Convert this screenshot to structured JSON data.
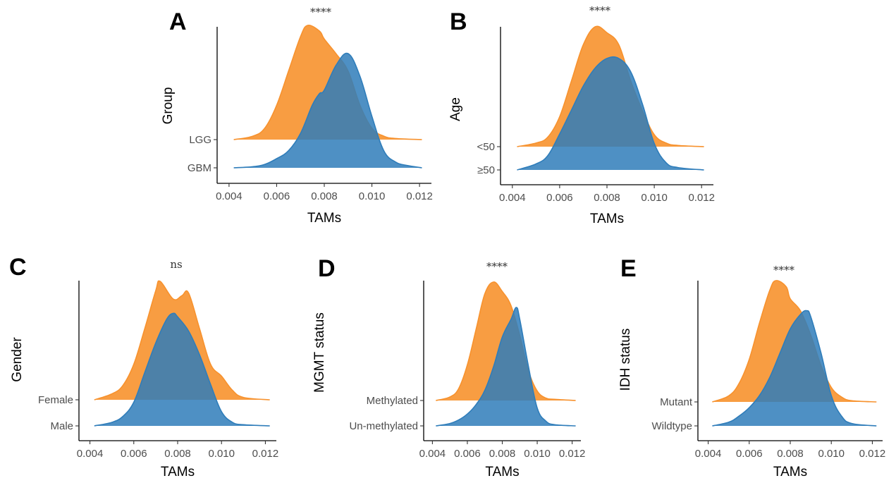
{
  "colors": {
    "upper": "#F7922E",
    "lower": "#2F7DBA"
  },
  "chart_data": [
    {
      "type": "density-ridge",
      "panel_label": "A",
      "significance": "****",
      "xlabel": "TAMs",
      "ylabel": "Group",
      "xlim": [
        0.0035,
        0.0125
      ],
      "xticks": [
        "0.004",
        "0.006",
        "0.008",
        "0.010",
        "0.012"
      ],
      "series": [
        {
          "name": "LGG",
          "x": [
            0.0042,
            0.005,
            0.0055,
            0.006,
            0.0065,
            0.007,
            0.0073,
            0.0078,
            0.008,
            0.0085,
            0.009,
            0.0095,
            0.01,
            0.0105,
            0.011,
            0.0121
          ],
          "y": [
            0,
            0.03,
            0.1,
            0.3,
            0.6,
            0.9,
            1.0,
            0.95,
            0.88,
            0.75,
            0.6,
            0.3,
            0.1,
            0.03,
            0.01,
            0
          ]
        },
        {
          "name": "GBM",
          "x": [
            0.0042,
            0.005,
            0.0055,
            0.006,
            0.0065,
            0.007,
            0.0075,
            0.0078,
            0.008,
            0.0085,
            0.009,
            0.0095,
            0.01,
            0.0105,
            0.011,
            0.0115,
            0.0121
          ],
          "y": [
            0,
            0.01,
            0.03,
            0.08,
            0.15,
            0.3,
            0.55,
            0.65,
            0.68,
            0.9,
            1.0,
            0.8,
            0.45,
            0.15,
            0.05,
            0.02,
            0
          ]
        }
      ]
    },
    {
      "type": "density-ridge",
      "panel_label": "B",
      "significance": "****",
      "xlabel": "TAMs",
      "ylabel": "Age",
      "xlim": [
        0.0035,
        0.0125
      ],
      "xticks": [
        "0.004",
        "0.006",
        "0.008",
        "0.010",
        "0.012"
      ],
      "series": [
        {
          "name": "<50",
          "x": [
            0.0042,
            0.005,
            0.0055,
            0.006,
            0.0065,
            0.007,
            0.0075,
            0.008,
            0.0085,
            0.009,
            0.0095,
            0.01,
            0.0105,
            0.011,
            0.0121
          ],
          "y": [
            0,
            0.03,
            0.08,
            0.25,
            0.55,
            0.85,
            1.0,
            0.95,
            0.85,
            0.55,
            0.3,
            0.1,
            0.03,
            0.01,
            0
          ]
        },
        {
          "name": "≥50",
          "x": [
            0.0042,
            0.005,
            0.0055,
            0.006,
            0.0065,
            0.007,
            0.0075,
            0.008,
            0.0085,
            0.009,
            0.0095,
            0.01,
            0.0105,
            0.011,
            0.0121
          ],
          "y": [
            0,
            0.05,
            0.12,
            0.3,
            0.5,
            0.7,
            0.85,
            0.93,
            0.93,
            0.82,
            0.55,
            0.22,
            0.06,
            0.02,
            0
          ]
        }
      ]
    },
    {
      "type": "density-ridge",
      "panel_label": "C",
      "significance": "ns",
      "xlabel": "TAMs",
      "ylabel": "Gender",
      "xlim": [
        0.0035,
        0.0125
      ],
      "xticks": [
        "0.004",
        "0.006",
        "0.008",
        "0.010",
        "0.012"
      ],
      "series": [
        {
          "name": "Female",
          "x": [
            0.0042,
            0.005,
            0.0055,
            0.006,
            0.0065,
            0.007,
            0.0072,
            0.0078,
            0.0082,
            0.0085,
            0.009,
            0.0095,
            0.01,
            0.0105,
            0.011,
            0.0122
          ],
          "y": [
            0,
            0.05,
            0.12,
            0.3,
            0.6,
            0.92,
            1.0,
            0.85,
            0.88,
            0.9,
            0.6,
            0.3,
            0.2,
            0.08,
            0.02,
            0
          ]
        },
        {
          "name": "Male",
          "x": [
            0.0042,
            0.005,
            0.0055,
            0.006,
            0.0065,
            0.007,
            0.0075,
            0.0078,
            0.008,
            0.0085,
            0.009,
            0.0095,
            0.01,
            0.0105,
            0.011,
            0.0122
          ],
          "y": [
            0,
            0.03,
            0.08,
            0.2,
            0.45,
            0.7,
            0.9,
            0.95,
            0.92,
            0.8,
            0.6,
            0.35,
            0.12,
            0.03,
            0.01,
            0
          ]
        }
      ]
    },
    {
      "type": "density-ridge",
      "panel_label": "D",
      "significance": "****",
      "xlabel": "TAMs",
      "ylabel": "MGMT status",
      "xlim": [
        0.0035,
        0.0125
      ],
      "xticks": [
        "0.004",
        "0.006",
        "0.008",
        "0.010",
        "0.012"
      ],
      "series": [
        {
          "name": "Methylated",
          "x": [
            0.0042,
            0.005,
            0.0055,
            0.006,
            0.0065,
            0.007,
            0.0075,
            0.008,
            0.0085,
            0.009,
            0.0095,
            0.01,
            0.0105,
            0.011,
            0.0122
          ],
          "y": [
            0,
            0.03,
            0.1,
            0.3,
            0.6,
            0.9,
            1.0,
            0.92,
            0.8,
            0.55,
            0.25,
            0.08,
            0.02,
            0.01,
            0
          ]
        },
        {
          "name": "Un-methylated",
          "x": [
            0.0042,
            0.005,
            0.0055,
            0.006,
            0.0065,
            0.007,
            0.0075,
            0.008,
            0.0085,
            0.0088,
            0.009,
            0.0095,
            0.01,
            0.0105,
            0.011,
            0.0122
          ],
          "y": [
            0,
            0.02,
            0.05,
            0.1,
            0.18,
            0.3,
            0.5,
            0.75,
            0.9,
            1.0,
            0.9,
            0.5,
            0.15,
            0.04,
            0.01,
            0
          ]
        }
      ]
    },
    {
      "type": "density-ridge",
      "panel_label": "E",
      "significance": "****",
      "xlabel": "TAMs",
      "ylabel": "IDH status",
      "xlim": [
        0.0035,
        0.0125
      ],
      "xticks": [
        "0.004",
        "0.006",
        "0.008",
        "0.010",
        "0.012"
      ],
      "series": [
        {
          "name": "Mutant",
          "x": [
            0.0042,
            0.005,
            0.0055,
            0.006,
            0.0065,
            0.007,
            0.0073,
            0.0078,
            0.008,
            0.0085,
            0.009,
            0.0095,
            0.01,
            0.0105,
            0.011,
            0.0122
          ],
          "y": [
            0,
            0.05,
            0.15,
            0.35,
            0.65,
            0.92,
            1.0,
            0.95,
            0.85,
            0.75,
            0.55,
            0.3,
            0.12,
            0.04,
            0.01,
            0
          ]
        },
        {
          "name": "Wildtype",
          "x": [
            0.0042,
            0.005,
            0.0055,
            0.006,
            0.0065,
            0.007,
            0.0075,
            0.008,
            0.0085,
            0.0088,
            0.009,
            0.0095,
            0.01,
            0.0105,
            0.011,
            0.0122
          ],
          "y": [
            0,
            0.03,
            0.08,
            0.15,
            0.25,
            0.4,
            0.6,
            0.8,
            0.92,
            0.95,
            0.9,
            0.6,
            0.25,
            0.08,
            0.02,
            0
          ]
        }
      ]
    }
  ]
}
